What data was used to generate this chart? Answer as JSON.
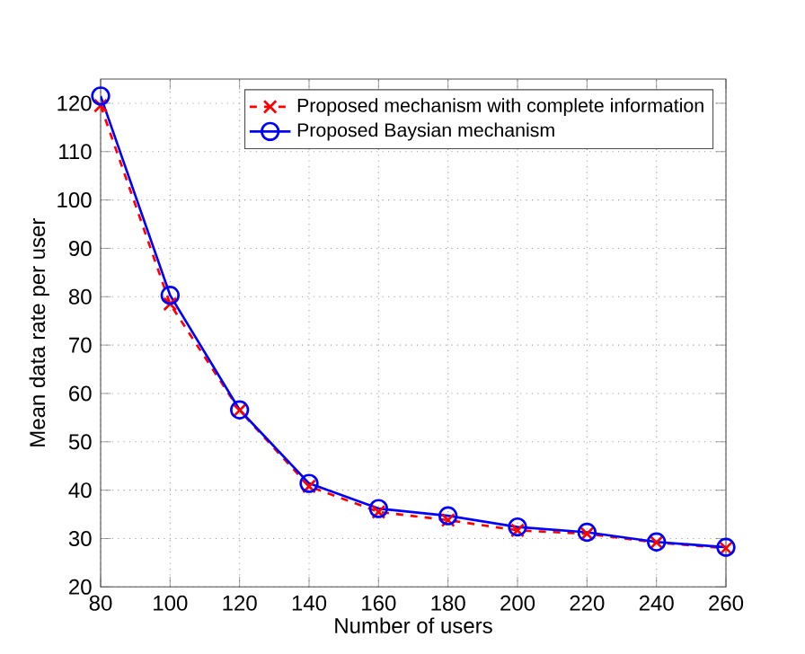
{
  "chart_data": {
    "type": "line",
    "xlabel": "Number of users",
    "ylabel": "Mean data rate per user",
    "x": [
      80,
      100,
      120,
      140,
      160,
      180,
      200,
      220,
      240,
      260
    ],
    "series": [
      {
        "name": "Proposed mechanism with complete information",
        "color": "#ff0000",
        "marker": "cross",
        "line_style": "dashed",
        "values": [
          119.5,
          78.5,
          56.5,
          40.8,
          35.5,
          33.8,
          31.7,
          31.0,
          29.2,
          28.0
        ]
      },
      {
        "name": "Proposed Baysian mechanism",
        "color": "#0000ff",
        "marker": "circle",
        "line_style": "solid",
        "values": [
          121.5,
          80.3,
          56.6,
          41.4,
          36.2,
          34.7,
          32.4,
          31.3,
          29.3,
          28.2
        ]
      }
    ],
    "xlim": [
      80,
      260
    ],
    "ylim": [
      20,
      125
    ],
    "xticks": [
      80,
      100,
      120,
      140,
      160,
      180,
      200,
      220,
      240,
      260
    ],
    "yticks": [
      20,
      30,
      40,
      50,
      60,
      70,
      80,
      90,
      100,
      110,
      120
    ],
    "grid": true,
    "legend": "top right"
  }
}
